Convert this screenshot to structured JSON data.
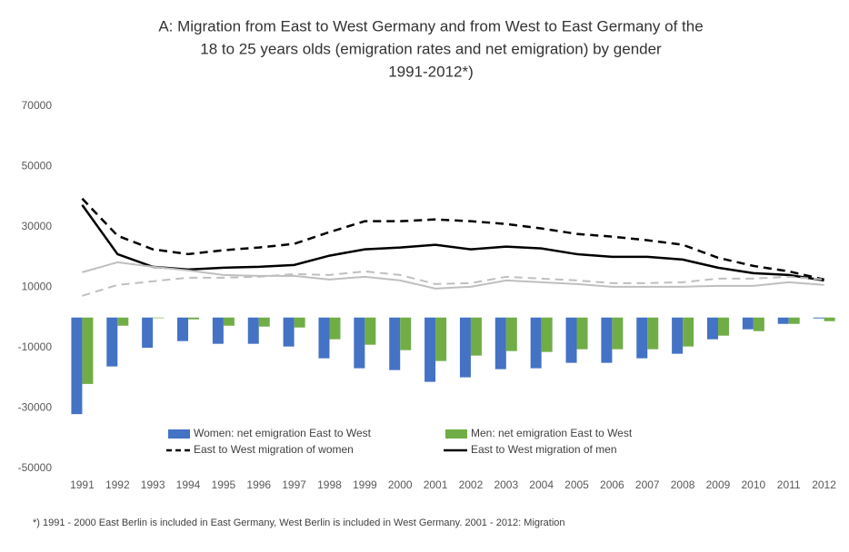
{
  "chart_data": {
    "type": "bar_line",
    "title": [
      "A: Migration from East to West Germany and from West to East Germany of the",
      "18 to 25 years olds (emigration rates and net emigration) by gender",
      "1991-2012*)"
    ],
    "footnote": "*) 1991 - 2000 East Berlin is included in East Germany, West Berlin is included in West Germany. 2001 - 2012: Migration",
    "categories": [
      "1991",
      "1992",
      "1993",
      "1994",
      "1995",
      "1996",
      "1997",
      "1998",
      "1999",
      "2000",
      "2001",
      "2002",
      "2003",
      "2004",
      "2005",
      "2006",
      "2007",
      "2008",
      "2009",
      "2010",
      "2011",
      "2012"
    ],
    "ylim": [
      -50000,
      70000
    ],
    "yticks": [
      -50000,
      -30000,
      -10000,
      10000,
      30000,
      50000,
      70000
    ],
    "grid": false,
    "series": [
      {
        "name": "Women: net emigration East to West",
        "kind": "bar",
        "color": "#4472c4",
        "values": [
          -32000,
          -16200,
          -10000,
          -7800,
          -8700,
          -8700,
          -9600,
          -13500,
          -16800,
          -17400,
          -21300,
          -19800,
          -17100,
          -16800,
          -15000,
          -15000,
          -13500,
          -12000,
          -7200,
          -3900,
          -2100,
          -300
        ]
      },
      {
        "name": "Men: net emigration East to West",
        "kind": "bar",
        "color": "#70ad47",
        "values": [
          -22000,
          -2700,
          -200,
          -600,
          -2700,
          -3000,
          -3300,
          -7200,
          -9000,
          -10800,
          -14400,
          -12600,
          -11100,
          -11400,
          -10500,
          -10500,
          -10500,
          -9600,
          -6000,
          -4500,
          -2100,
          -1200
        ]
      },
      {
        "name": "East to West migration of women",
        "kind": "line",
        "dashed": true,
        "color": "#000000",
        "values": [
          39400,
          27100,
          22600,
          21000,
          22300,
          23200,
          24400,
          28300,
          31900,
          31900,
          32500,
          31900,
          31000,
          29500,
          27700,
          26800,
          25600,
          24100,
          19800,
          17100,
          15300,
          12600
        ]
      },
      {
        "name": "East to West migration of men",
        "kind": "line",
        "dashed": false,
        "color": "#000000",
        "values": [
          37300,
          21000,
          16800,
          15900,
          16500,
          16800,
          17400,
          20500,
          22600,
          23200,
          24100,
          22600,
          23500,
          22900,
          21000,
          20100,
          20100,
          19200,
          16500,
          14700,
          14100,
          12300
        ]
      },
      {
        "kind": "line",
        "dashed": false,
        "color": "#bfbfbf",
        "values": [
          15000,
          18300,
          16800,
          15600,
          14100,
          13800,
          13800,
          12600,
          13500,
          12300,
          9600,
          10200,
          12300,
          11700,
          11100,
          10200,
          10200,
          10200,
          10500,
          10500,
          11700,
          10800
        ]
      },
      {
        "kind": "line",
        "dashed": true,
        "color": "#bfbfbf",
        "values": [
          7200,
          10800,
          12000,
          13200,
          13200,
          13500,
          14400,
          14100,
          15300,
          14100,
          11100,
          11400,
          13500,
          12900,
          12300,
          11400,
          11400,
          11700,
          12900,
          12900,
          13500,
          12600
        ]
      }
    ]
  }
}
